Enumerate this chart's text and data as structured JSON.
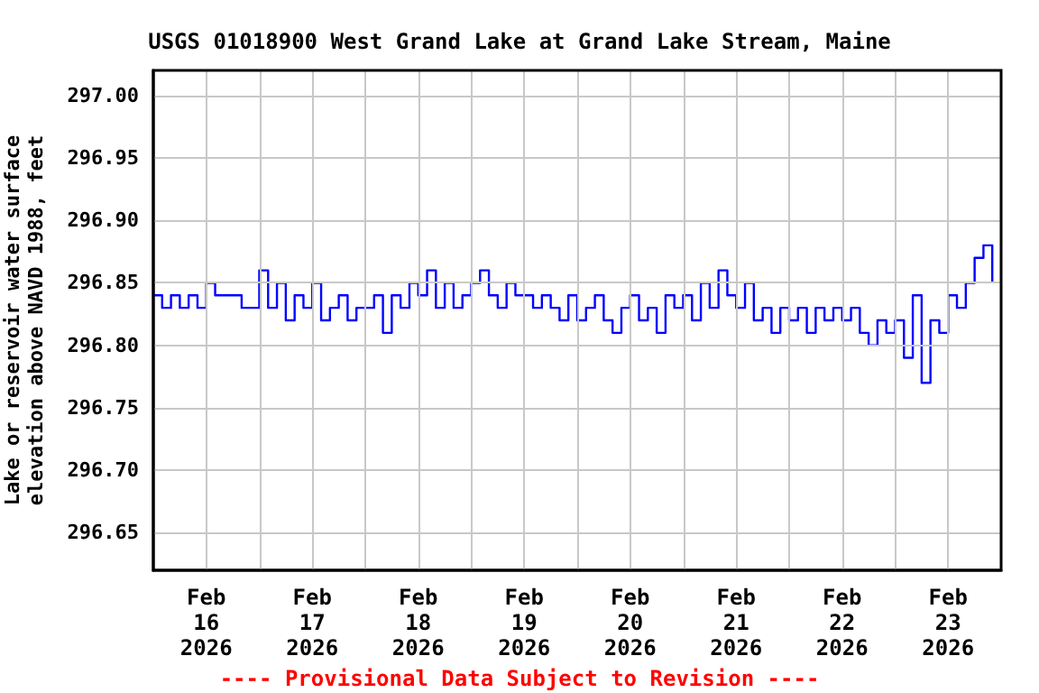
{
  "chart_data": {
    "type": "step",
    "title": "USGS 01018900 West Grand Lake at Grand Lake Stream, Maine",
    "ylabel": "Lake or reservoir water surface\nelevation above NAVD 1988, feet",
    "annotations": [
      "---- Provisional Data Subject to Revision ----"
    ],
    "x": [
      "2026-02-16T00:00",
      "2026-02-16T02:00",
      "2026-02-16T04:00",
      "2026-02-16T06:00",
      "2026-02-16T08:00",
      "2026-02-16T10:00",
      "2026-02-16T12:00",
      "2026-02-16T14:00",
      "2026-02-16T16:00",
      "2026-02-16T18:00",
      "2026-02-16T20:00",
      "2026-02-16T22:00",
      "2026-02-17T00:00",
      "2026-02-17T02:00",
      "2026-02-17T04:00",
      "2026-02-17T06:00",
      "2026-02-17T08:00",
      "2026-02-17T10:00",
      "2026-02-17T12:00",
      "2026-02-17T14:00",
      "2026-02-17T16:00",
      "2026-02-17T18:00",
      "2026-02-17T20:00",
      "2026-02-17T22:00",
      "2026-02-18T00:00",
      "2026-02-18T02:00",
      "2026-02-18T04:00",
      "2026-02-18T06:00",
      "2026-02-18T08:00",
      "2026-02-18T10:00",
      "2026-02-18T12:00",
      "2026-02-18T14:00",
      "2026-02-18T16:00",
      "2026-02-18T18:00",
      "2026-02-18T20:00",
      "2026-02-18T22:00",
      "2026-02-19T00:00",
      "2026-02-19T02:00",
      "2026-02-19T04:00",
      "2026-02-19T06:00",
      "2026-02-19T08:00",
      "2026-02-19T10:00",
      "2026-02-19T12:00",
      "2026-02-19T14:00",
      "2026-02-19T16:00",
      "2026-02-19T18:00",
      "2026-02-19T20:00",
      "2026-02-19T22:00",
      "2026-02-20T00:00",
      "2026-02-20T02:00",
      "2026-02-20T04:00",
      "2026-02-20T06:00",
      "2026-02-20T08:00",
      "2026-02-20T10:00",
      "2026-02-20T12:00",
      "2026-02-20T14:00",
      "2026-02-20T16:00",
      "2026-02-20T18:00",
      "2026-02-20T20:00",
      "2026-02-20T22:00",
      "2026-02-21T00:00",
      "2026-02-21T02:00",
      "2026-02-21T04:00",
      "2026-02-21T06:00",
      "2026-02-21T08:00",
      "2026-02-21T10:00",
      "2026-02-21T12:00",
      "2026-02-21T14:00",
      "2026-02-21T16:00",
      "2026-02-21T18:00",
      "2026-02-21T20:00",
      "2026-02-21T22:00",
      "2026-02-22T00:00",
      "2026-02-22T02:00",
      "2026-02-22T04:00",
      "2026-02-22T06:00",
      "2026-02-22T08:00",
      "2026-02-22T10:00",
      "2026-02-22T12:00",
      "2026-02-22T14:00",
      "2026-02-22T16:00",
      "2026-02-22T18:00",
      "2026-02-22T20:00",
      "2026-02-22T22:00",
      "2026-02-23T00:00",
      "2026-02-23T02:00",
      "2026-02-23T04:00",
      "2026-02-23T06:00",
      "2026-02-23T08:00",
      "2026-02-23T10:00",
      "2026-02-23T12:00",
      "2026-02-23T14:00",
      "2026-02-23T16:00",
      "2026-02-23T18:00",
      "2026-02-23T20:00",
      "2026-02-23T22:00"
    ],
    "series": [
      {
        "color": "#0000ff",
        "values": [
          296.84,
          296.83,
          296.84,
          296.83,
          296.84,
          296.83,
          296.85,
          296.84,
          296.84,
          296.84,
          296.83,
          296.83,
          296.86,
          296.83,
          296.85,
          296.82,
          296.84,
          296.83,
          296.85,
          296.82,
          296.83,
          296.84,
          296.82,
          296.83,
          296.83,
          296.84,
          296.81,
          296.84,
          296.83,
          296.85,
          296.84,
          296.86,
          296.83,
          296.85,
          296.83,
          296.84,
          296.85,
          296.86,
          296.84,
          296.83,
          296.85,
          296.84,
          296.84,
          296.83,
          296.84,
          296.83,
          296.82,
          296.84,
          296.82,
          296.83,
          296.84,
          296.82,
          296.81,
          296.83,
          296.84,
          296.82,
          296.83,
          296.81,
          296.84,
          296.83,
          296.84,
          296.82,
          296.85,
          296.83,
          296.86,
          296.84,
          296.83,
          296.85,
          296.82,
          296.83,
          296.81,
          296.83,
          296.82,
          296.83,
          296.81,
          296.83,
          296.82,
          296.83,
          296.82,
          296.83,
          296.81,
          296.8,
          296.82,
          296.81,
          296.82,
          296.79,
          296.84,
          296.77,
          296.82,
          296.81,
          296.84,
          296.83,
          296.85,
          296.87,
          296.88,
          296.85
        ]
      }
    ],
    "xlim": [
      "2026-02-16T00:00",
      "2026-02-24T00:00"
    ],
    "xticks": [
      {
        "value": "2026-02-16T12:00",
        "label": "Feb\n16\n2026"
      },
      {
        "value": "2026-02-17T12:00",
        "label": "Feb\n17\n2026"
      },
      {
        "value": "2026-02-18T12:00",
        "label": "Feb\n18\n2026"
      },
      {
        "value": "2026-02-19T12:00",
        "label": "Feb\n19\n2026"
      },
      {
        "value": "2026-02-20T12:00",
        "label": "Feb\n20\n2026"
      },
      {
        "value": "2026-02-21T12:00",
        "label": "Feb\n21\n2026"
      },
      {
        "value": "2026-02-22T12:00",
        "label": "Feb\n22\n2026"
      },
      {
        "value": "2026-02-23T12:00",
        "label": "Feb\n23\n2026"
      },
      {
        "value": "2026-02-17T00:00",
        "label": null
      },
      {
        "value": "2026-02-18T00:00",
        "label": null
      },
      {
        "value": "2026-02-19T00:00",
        "label": null
      },
      {
        "value": "2026-02-20T00:00",
        "label": null
      },
      {
        "value": "2026-02-21T00:00",
        "label": null
      },
      {
        "value": "2026-02-22T00:00",
        "label": null
      },
      {
        "value": "2026-02-23T00:00",
        "label": null
      }
    ],
    "ylim": [
      296.62,
      297.02
    ],
    "yticks": [
      {
        "value": 296.65,
        "label": "296.65"
      },
      {
        "value": 296.7,
        "label": "296.70"
      },
      {
        "value": 296.75,
        "label": "296.75"
      },
      {
        "value": 296.8,
        "label": "296.80"
      },
      {
        "value": 296.85,
        "label": "296.85"
      },
      {
        "value": 296.9,
        "label": "296.90"
      },
      {
        "value": 296.95,
        "label": "296.95"
      },
      {
        "value": 297,
        "label": "297.00"
      }
    ],
    "grid": true
  }
}
